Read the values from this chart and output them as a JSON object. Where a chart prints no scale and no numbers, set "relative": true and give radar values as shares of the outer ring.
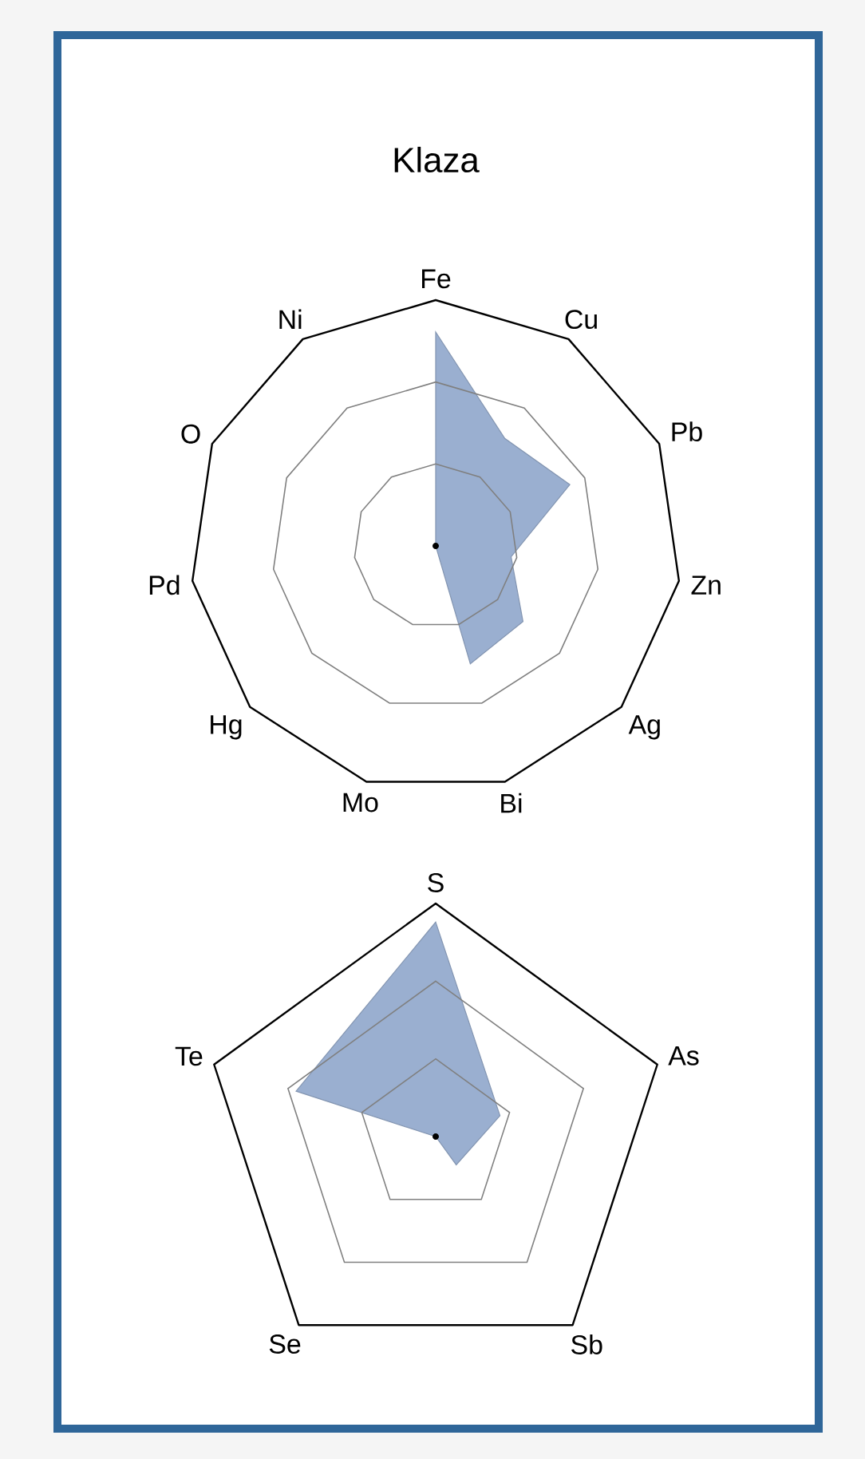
{
  "chart_data": [
    {
      "type": "radar",
      "title": "Klaza",
      "categories": [
        "Fe",
        "Cu",
        "Pb",
        "Zn",
        "Ag",
        "Bi",
        "Mo",
        "Hg",
        "Pd",
        "O",
        "Ni"
      ],
      "relative": true,
      "grid": true,
      "series": [
        {
          "color": "#9aafd0",
          "values": [
            0.87,
            0.52,
            0.6,
            0.31,
            0.47,
            0.5,
            0,
            0,
            0,
            0,
            0
          ]
        }
      ]
    },
    {
      "type": "radar",
      "categories": [
        "S",
        "As",
        "Sb",
        "Se",
        "Te"
      ],
      "relative": true,
      "grid": true,
      "series": [
        {
          "color": "#9aafd0",
          "values": [
            0.92,
            0.29,
            0.15,
            0,
            0.63
          ]
        }
      ]
    }
  ]
}
